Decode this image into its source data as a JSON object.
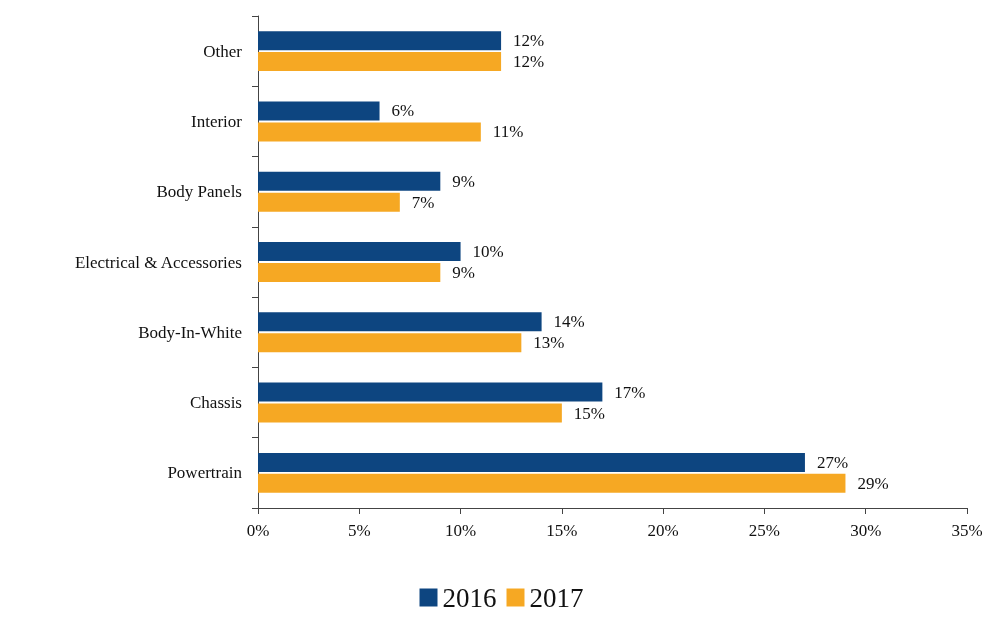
{
  "chart_data": {
    "type": "bar",
    "orientation": "horizontal",
    "categories": [
      "Other",
      "Interior",
      "Body Panels",
      "Electrical & Accessories",
      "Body-In-White",
      "Chassis",
      "Powertrain"
    ],
    "series": [
      {
        "name": "2016",
        "color": "#0d4580",
        "values": [
          12,
          6,
          9,
          10,
          14,
          17,
          27
        ],
        "value_labels": [
          "12%",
          "6%",
          "9%",
          "10%",
          "14%",
          "17%",
          "27%"
        ]
      },
      {
        "name": "2017",
        "color": "#f6a823",
        "values": [
          12,
          11,
          7,
          9,
          13,
          15,
          29
        ],
        "value_labels": [
          "12%",
          "11%",
          "7%",
          "9%",
          "13%",
          "15%",
          "29%"
        ]
      }
    ],
    "xlim": [
      0,
      35
    ],
    "xticks": [
      {
        "value": 0,
        "label": "0%"
      },
      {
        "value": 5,
        "label": "5%"
      },
      {
        "value": 10,
        "label": "10%"
      },
      {
        "value": 15,
        "label": "15%"
      },
      {
        "value": 20,
        "label": "20%"
      },
      {
        "value": 25,
        "label": "25%"
      },
      {
        "value": 30,
        "label": "30%"
      },
      {
        "value": 35,
        "label": "35%"
      }
    ],
    "grid": false,
    "legend": "bottom"
  }
}
